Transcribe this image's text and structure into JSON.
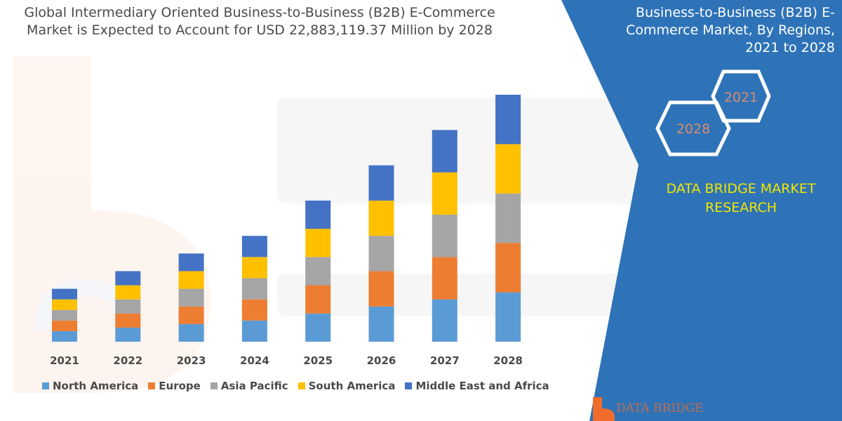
{
  "chart_data": {
    "type": "bar",
    "stacked": true,
    "title": "Global Intermediary Oriented Business-to-Business (B2B) E-Commerce Market is Expected to Account for USD 22,883,119.37 Million by 2028",
    "categories": [
      "2021",
      "2022",
      "2023",
      "2024",
      "2025",
      "2026",
      "2027",
      "2028"
    ],
    "series": [
      {
        "name": "North America",
        "color": "#5b9bd5",
        "values": [
          15,
          20,
          25,
          30,
          40,
          50,
          60,
          70
        ]
      },
      {
        "name": "Europe",
        "color": "#ed7d31",
        "values": [
          15,
          20,
          25,
          30,
          40,
          50,
          60,
          70
        ]
      },
      {
        "name": "Asia Pacific",
        "color": "#a5a5a5",
        "values": [
          15,
          20,
          25,
          30,
          40,
          50,
          60,
          70
        ]
      },
      {
        "name": "South America",
        "color": "#ffc000",
        "values": [
          15,
          20,
          25,
          30,
          40,
          50,
          60,
          70
        ]
      },
      {
        "name": "Middle East and Africa",
        "color": "#4472c4",
        "values": [
          15,
          20,
          25,
          30,
          40,
          50,
          60,
          70
        ]
      }
    ],
    "xlabel": "",
    "ylabel": "",
    "ylim": [
      0,
      350
    ],
    "grid": false,
    "legend_position": "bottom"
  },
  "panel": {
    "title_lines": [
      "Business-to-Business (B2B) E-",
      "Commerce Market, By Regions,",
      "2021 to 2028"
    ],
    "hex_years": [
      "2021",
      "2028"
    ],
    "brand_lines": [
      "DATA BRIDGE MARKET",
      "RESEARCH"
    ],
    "background_color": "#2e73b8"
  },
  "logo": {
    "text": "DATA BRIDGE",
    "color": "#ef6c2b"
  }
}
